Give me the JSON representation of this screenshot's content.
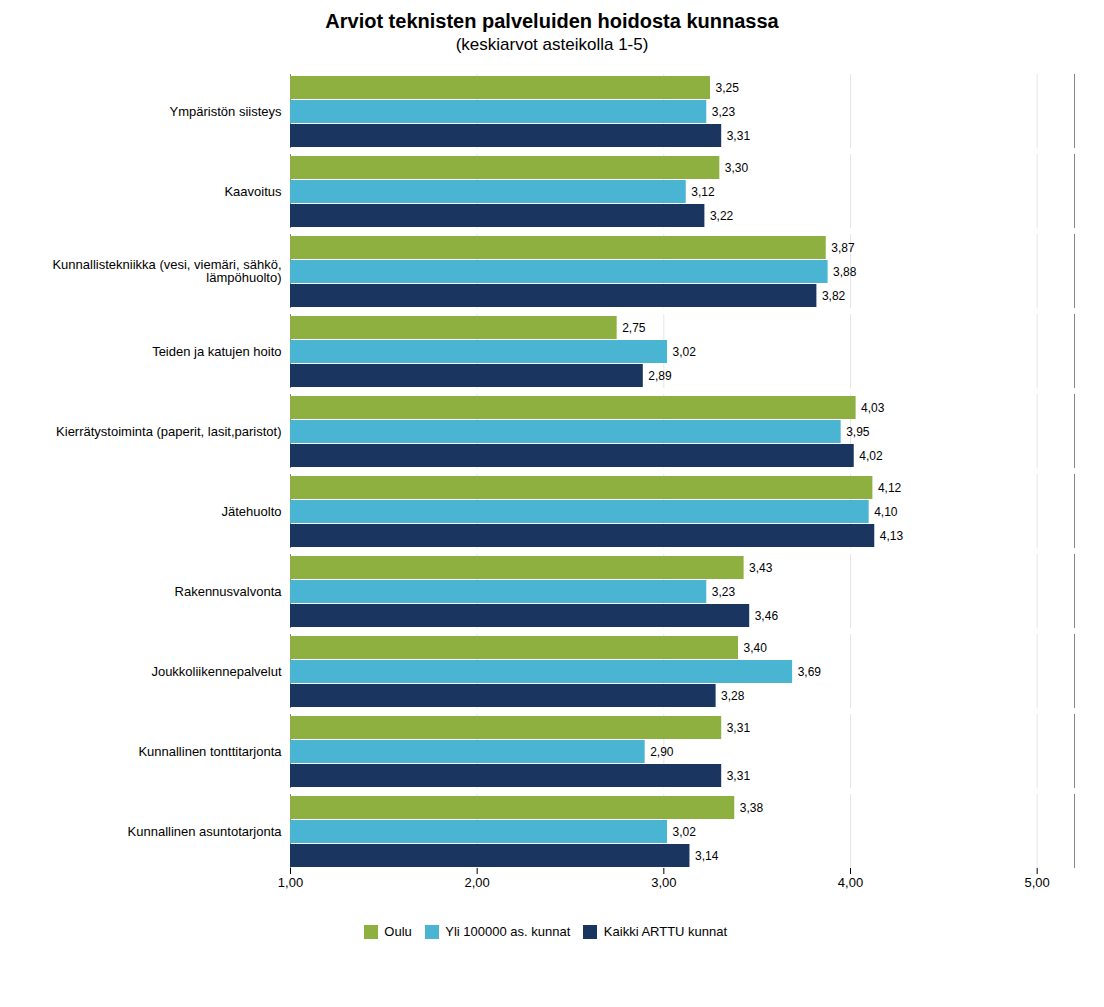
{
  "chart_data": {
    "type": "bar",
    "orientation": "horizontal",
    "title": "Arviot teknisten palveluiden hoidosta kunnassa",
    "subtitle": "(keskiarvot asteikolla 1-5)",
    "categories": [
      "Ympäristön siisteys",
      "Kaavoitus",
      "Kunnallistekniikka (vesi, viemäri, sähkö,\nlämpöhuolto)",
      "Teiden ja katujen hoito",
      "Kierrätystoiminta (paperit, lasit,paristot)",
      "Jätehuolto",
      "Rakennusvalvonta",
      "Joukkoliikennepalvelut",
      "Kunnallinen tonttitarjonta",
      "Kunnallinen asuntotarjonta"
    ],
    "series": [
      {
        "name": "Oulu",
        "color": "#8db041",
        "values": [
          3.25,
          3.3,
          3.87,
          2.75,
          4.03,
          4.12,
          3.43,
          3.4,
          3.31,
          3.38
        ],
        "value_labels": [
          "3,25",
          "3,30",
          "3,87",
          "2,75",
          "4,03",
          "4,12",
          "3,43",
          "3,40",
          "3,31",
          "3,38"
        ]
      },
      {
        "name": "Yli 100000 as. kunnat",
        "color": "#4ab5d3",
        "values": [
          3.23,
          3.12,
          3.88,
          3.02,
          3.95,
          4.1,
          3.23,
          3.69,
          2.9,
          3.02
        ],
        "value_labels": [
          "3,23",
          "3,12",
          "3,88",
          "3,02",
          "3,95",
          "4,10",
          "3,23",
          "3,69",
          "2,90",
          "3,02"
        ]
      },
      {
        "name": "Kaikki ARTTU kunnat",
        "color": "#1a3560",
        "values": [
          3.31,
          3.22,
          3.82,
          2.89,
          4.02,
          4.13,
          3.46,
          3.28,
          3.31,
          3.14
        ],
        "value_labels": [
          "3,31",
          "3,22",
          "3,82",
          "2,89",
          "4,02",
          "4,13",
          "3,46",
          "3,28",
          "3,31",
          "3,14"
        ]
      }
    ],
    "xlim": [
      1.0,
      5.2
    ],
    "xticks": [
      {
        "value": 1.0,
        "label": "1,00"
      },
      {
        "value": 2.0,
        "label": "2,00"
      },
      {
        "value": 3.0,
        "label": "3,00"
      },
      {
        "value": 4.0,
        "label": "4,00"
      },
      {
        "value": 5.0,
        "label": "5,00"
      }
    ],
    "grid": true,
    "data_labels": true,
    "legend": "bottom"
  }
}
